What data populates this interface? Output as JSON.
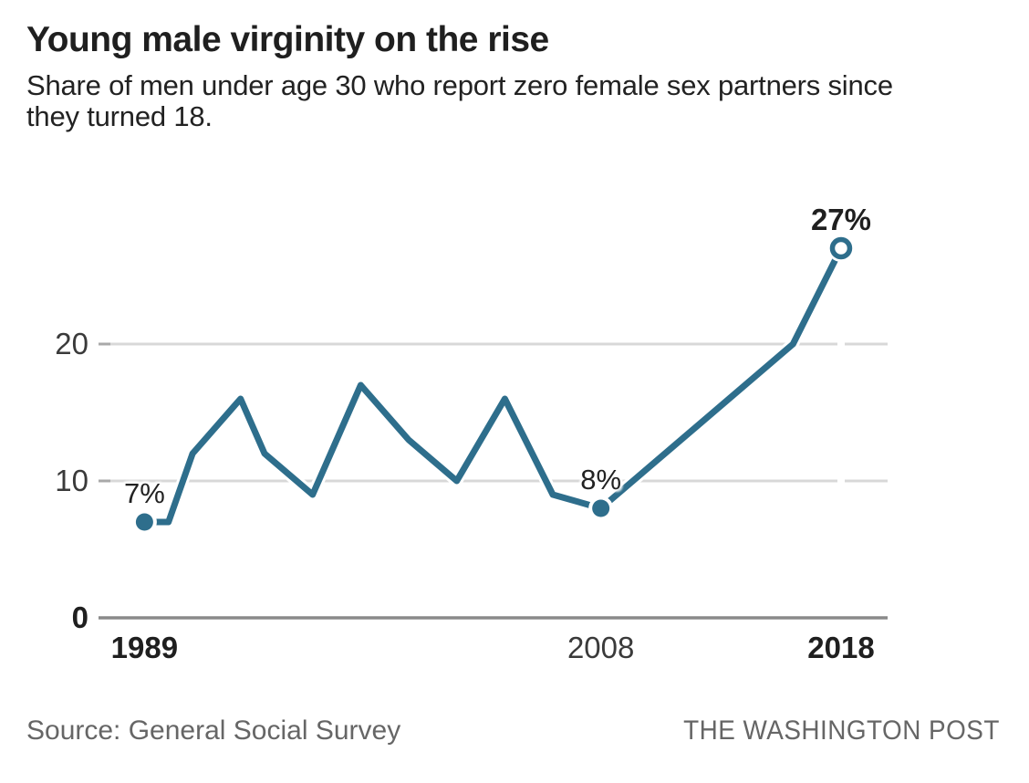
{
  "header": {
    "title": "Young male virginity on the rise",
    "subtitle_line1": "Share of men under age 30 who report zero female sex partners since",
    "subtitle_line2": "they turned 18."
  },
  "chart_data": {
    "type": "line",
    "title": "Young male virginity on the rise",
    "x": [
      1989,
      1990,
      1991,
      1993,
      1994,
      1996,
      1998,
      2000,
      2002,
      2004,
      2006,
      2008,
      2016,
      2018
    ],
    "values": [
      7,
      7,
      12,
      16,
      12,
      9,
      17,
      13,
      10,
      16,
      9,
      8,
      20,
      27
    ],
    "unit": "%",
    "xlim": [
      1987,
      2020
    ],
    "ylim": [
      0,
      30
    ],
    "grid": "horizontal",
    "yticks": [
      {
        "value": 0,
        "label": "0",
        "bold": true
      },
      {
        "value": 10,
        "label": "10",
        "bold": false
      },
      {
        "value": 20,
        "label": "20",
        "bold": false
      }
    ],
    "xticks": [
      {
        "year": 1989,
        "label": "1989",
        "bold": true
      },
      {
        "year": 2008,
        "label": "2008",
        "bold": false
      },
      {
        "year": 2018,
        "label": "2018",
        "bold": true
      }
    ],
    "point_labels": [
      {
        "year": 1989,
        "value": 7,
        "text": "7%",
        "bold": false
      },
      {
        "year": 2008,
        "value": 8,
        "text": "8%",
        "bold": false
      },
      {
        "year": 2018,
        "value": 27,
        "text": "27%",
        "bold": true
      }
    ],
    "markers": [
      {
        "year": 1989,
        "value": 7,
        "style": "filled"
      },
      {
        "year": 2008,
        "value": 8,
        "style": "filled"
      },
      {
        "year": 2018,
        "value": 27,
        "style": "open"
      }
    ],
    "colors": {
      "line": "#2E6E8C",
      "grid": "#d8d8d8",
      "grid_tick": "#a9a9a9",
      "zero_axis": "#8a8a8a",
      "label_regular": "#3a3a3a",
      "label_bold": "#1f1f1f"
    }
  },
  "footer": {
    "source": "Source: General Social Survey",
    "credit": "THE WASHINGTON POST"
  }
}
